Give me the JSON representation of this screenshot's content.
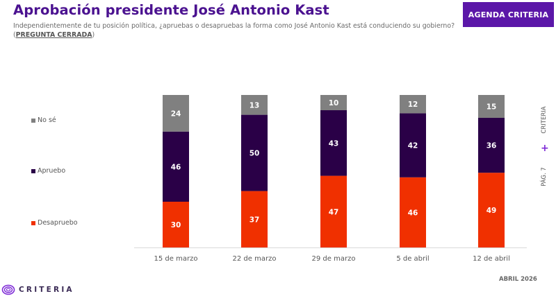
{
  "header": {
    "title": "Aprobación presidente José Antonio Kast",
    "subtitle_main": "Independientemente de tu posición política, ¿apruebas o desapruebas la forma como José Antonio Kast está conduciendo su gobierno? (",
    "subtitle_tag": "PREGUNTA CERRADA",
    "subtitle_end": ")",
    "agenda_button": "AGENDA CRITERIA"
  },
  "side": {
    "brand": "CRITERIA",
    "plus": "+",
    "page": "PÁG. 7"
  },
  "footer": {
    "logo_text": "CRITERIA",
    "date": "ABRIL 2026"
  },
  "colors": {
    "no_se": "#808080",
    "apruebo": "#2a0047",
    "desapruebo": "#f03000",
    "brand": "#5b17a8"
  },
  "chart_data": {
    "type": "bar",
    "stacked": true,
    "title": "Aprobación presidente José Antonio Kast",
    "xlabel": "",
    "ylabel": "",
    "ylim": [
      0,
      100
    ],
    "legend_position": "left",
    "categories": [
      "15 de marzo",
      "22 de marzo",
      "29 de marzo",
      "5 de abril",
      "12 de abril"
    ],
    "series": [
      {
        "name": "Desapruebo",
        "color": "#f03000",
        "values": [
          30,
          37,
          47,
          46,
          49
        ]
      },
      {
        "name": "Apruebo",
        "color": "#2a0047",
        "values": [
          46,
          50,
          43,
          42,
          36
        ]
      },
      {
        "name": "No sé",
        "color": "#808080",
        "values": [
          24,
          13,
          10,
          12,
          15
        ]
      }
    ],
    "legend": [
      "No sé",
      "Apruebo",
      "Desapruebo"
    ]
  }
}
